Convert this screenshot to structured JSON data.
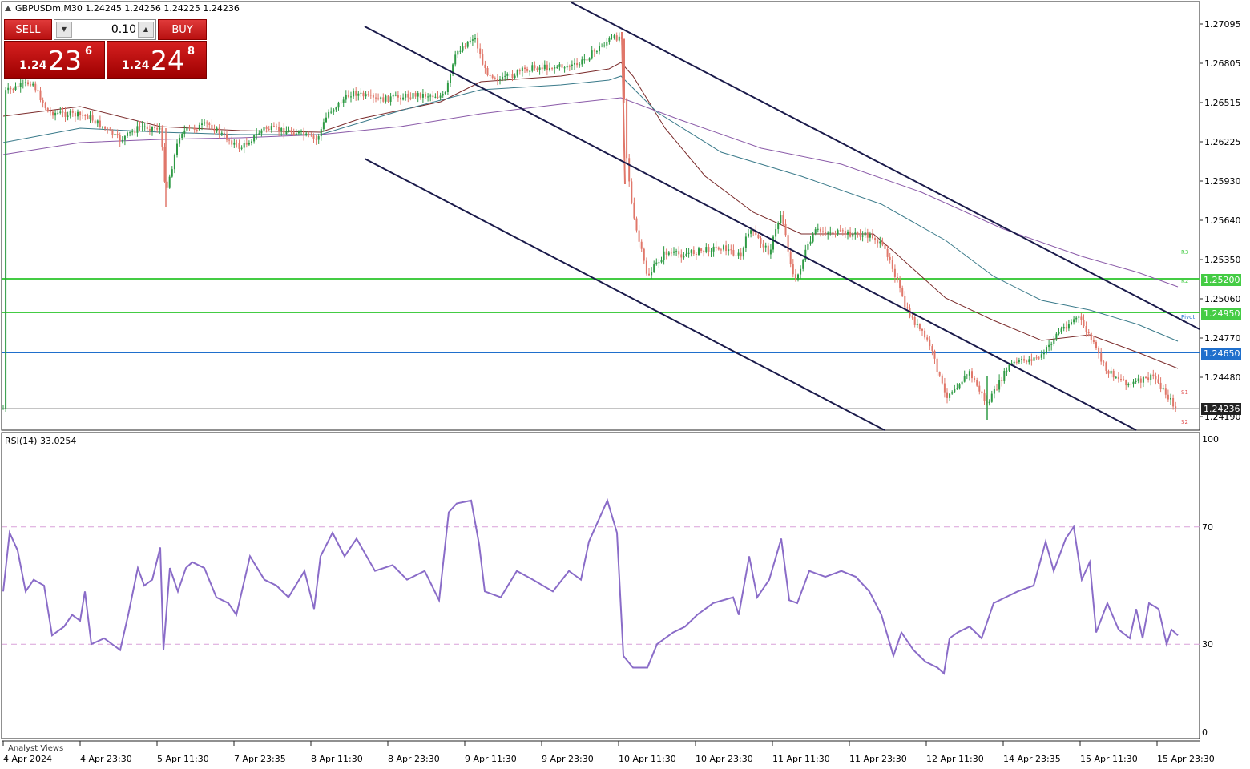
{
  "header": {
    "symbol_info": "GBPUSDm,M30  1.24245 1.24256 1.24225 1.24236"
  },
  "trade_panel": {
    "sell_label": "SELL",
    "buy_label": "BUY",
    "volume": "0.10",
    "bid": {
      "prefix": "1.24",
      "big": "23",
      "sup": "6"
    },
    "ask": {
      "prefix": "1.24",
      "big": "24",
      "sup": "8"
    }
  },
  "price_axis": [
    "1.27095",
    "1.26805",
    "1.26515",
    "1.26225",
    "1.25930",
    "1.25640",
    "1.25350",
    "1.25060",
    "1.24770",
    "1.24480",
    "1.24190"
  ],
  "levels": {
    "r_upper": {
      "label": "1.25200",
      "color": "#44cc44"
    },
    "r_lower": {
      "label": "1.24950",
      "color": "#44cc44"
    },
    "pivot": {
      "label": "1.24650",
      "color": "#1f6fcc"
    },
    "current": {
      "label": "1.24236",
      "color": "#222222"
    }
  },
  "markers": {
    "r3": "R3",
    "r2": "R2",
    "pivot": "Pivot",
    "s1": "S1",
    "s2": "S2"
  },
  "rsi": {
    "label": "RSI(14) 33.0254",
    "levels": [
      "100",
      "70",
      "30",
      "0"
    ],
    "level_color": "#d9a0d9",
    "line_color": "#8a6cc8"
  },
  "time_axis": [
    "4 Apr 2024",
    "4 Apr 23:30",
    "5 Apr 11:30",
    "7 Apr 23:35",
    "8 Apr 11:30",
    "8 Apr 23:30",
    "9 Apr 11:30",
    "9 Apr 23:30",
    "10 Apr 11:30",
    "10 Apr 23:30",
    "11 Apr 11:30",
    "11 Apr 23:30",
    "12 Apr 11:30",
    "14 Apr 23:35",
    "15 Apr 11:30",
    "15 Apr 23:30"
  ],
  "footer": {
    "analyst": "Analyst Views"
  },
  "colors": {
    "bull": "#2e9a44",
    "bear": "#e0776a",
    "channel": "#1a1a4a"
  }
}
